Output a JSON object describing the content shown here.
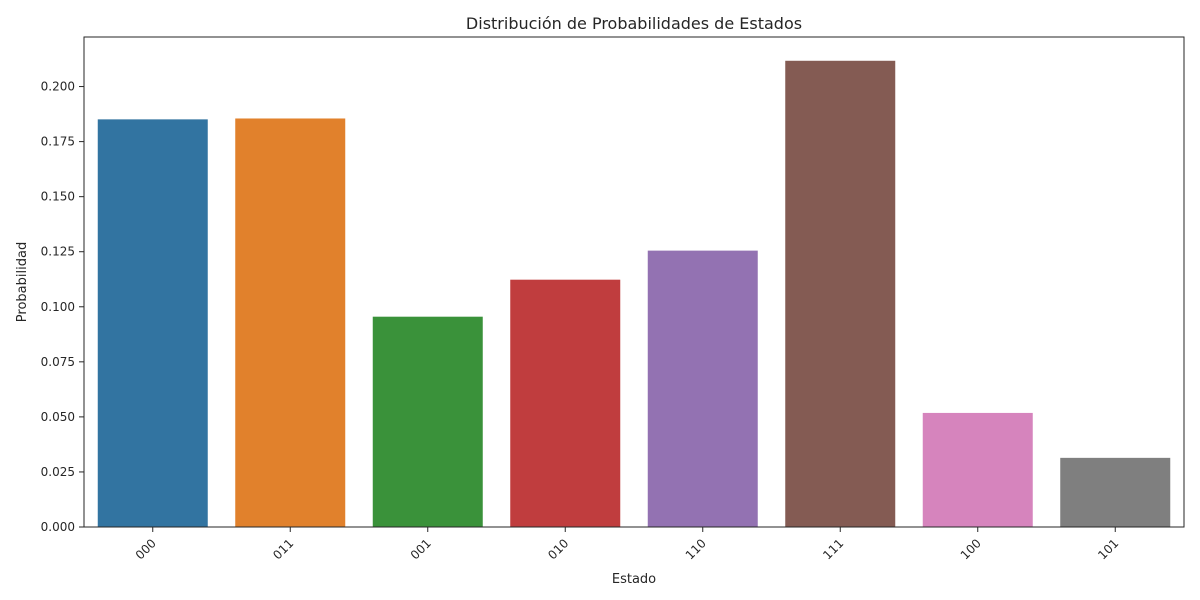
{
  "chart_data": {
    "type": "bar",
    "title": "Distribución de Probabilidades de Estados",
    "xlabel": "Estado",
    "ylabel": "Probabilidad",
    "categories": [
      "000",
      "011",
      "001",
      "010",
      "110",
      "111",
      "100",
      "101"
    ],
    "values": [
      0.1851,
      0.1855,
      0.0955,
      0.1123,
      0.1255,
      0.2117,
      0.0518,
      0.0314
    ],
    "colors": [
      "#3274a1",
      "#e1812c",
      "#3a923a",
      "#c03d3e",
      "#9372b2",
      "#845b53",
      "#d684bd",
      "#7f7f7f"
    ],
    "ylim": [
      0,
      0.2225
    ],
    "yticks": [
      0,
      0.025,
      0.05,
      0.075,
      0.1,
      0.125,
      0.15,
      0.175,
      0.2
    ],
    "ytick_labels": [
      "0.000",
      "0.025",
      "0.050",
      "0.075",
      "0.100",
      "0.125",
      "0.150",
      "0.175",
      "0.200"
    ],
    "xtick_rotation_deg": 45,
    "grid": false,
    "legend": "none"
  }
}
